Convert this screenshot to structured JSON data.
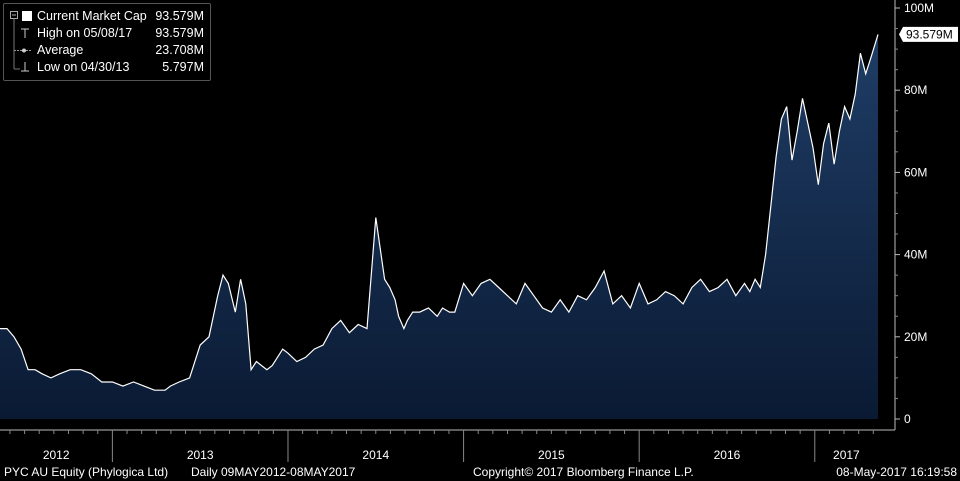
{
  "legend": {
    "current": {
      "label": "Current Market Cap",
      "value": "93.579M"
    },
    "high": {
      "label": "High on 05/08/17",
      "value": "93.579M"
    },
    "average": {
      "label": "Average",
      "value": "23.708M"
    },
    "low": {
      "label": "Low on 04/30/13",
      "value": "5.797M"
    }
  },
  "footer": {
    "security": "PYC AU Equity (Phylogica Ltd)",
    "range": "Daily 09MAY2012-08MAY2017",
    "copyright": "Copyright© 2017 Bloomberg Finance L.P.",
    "timestamp": "08-May-2017 16:19:58"
  },
  "last_value_label": "93.579M",
  "colors": {
    "background": "#000000",
    "line": "#ffffff",
    "area_top": "#1f3d66",
    "area_bottom": "#0a1a33",
    "grid": "#2a2a2a"
  },
  "chart_data": {
    "type": "area",
    "title": "",
    "xlabel": "",
    "ylabel": "",
    "y_axis_side": "right",
    "legend_placement": "top-left",
    "grid": false,
    "ylim": [
      0,
      100
    ],
    "yticks": [
      0,
      20,
      40,
      60,
      80,
      100
    ],
    "ytick_labels": [
      "0",
      "20M",
      "40M",
      "60M",
      "80M",
      "100M"
    ],
    "xlim": [
      2012.36,
      2017.36
    ],
    "x_year_labels": [
      "2012",
      "2013",
      "2014",
      "2015",
      "2016",
      "2017"
    ],
    "series": [
      {
        "name": "Current Market Cap",
        "unit": "M",
        "x": [
          2012.36,
          2012.4,
          2012.44,
          2012.48,
          2012.52,
          2012.56,
          2012.6,
          2012.65,
          2012.7,
          2012.76,
          2012.82,
          2012.88,
          2012.94,
          2013.0,
          2013.06,
          2013.12,
          2013.18,
          2013.24,
          2013.3,
          2013.33,
          2013.38,
          2013.44,
          2013.5,
          2013.55,
          2013.6,
          2013.63,
          2013.66,
          2013.7,
          2013.73,
          2013.76,
          2013.79,
          2013.82,
          2013.85,
          2013.88,
          2013.91,
          2013.94,
          2013.97,
          2014.0,
          2014.05,
          2014.1,
          2014.15,
          2014.2,
          2014.25,
          2014.3,
          2014.35,
          2014.4,
          2014.45,
          2014.5,
          2014.55,
          2014.58,
          2014.61,
          2014.63,
          2014.66,
          2014.68,
          2014.71,
          2014.75,
          2014.8,
          2014.85,
          2014.88,
          2014.92,
          2014.95,
          2015.0,
          2015.05,
          2015.1,
          2015.15,
          2015.2,
          2015.25,
          2015.3,
          2015.35,
          2015.4,
          2015.45,
          2015.5,
          2015.55,
          2015.6,
          2015.65,
          2015.7,
          2015.75,
          2015.8,
          2015.85,
          2015.9,
          2015.95,
          2016.0,
          2016.05,
          2016.1,
          2016.15,
          2016.2,
          2016.25,
          2016.3,
          2016.35,
          2016.4,
          2016.45,
          2016.5,
          2016.55,
          2016.6,
          2016.63,
          2016.66,
          2016.69,
          2016.72,
          2016.75,
          2016.78,
          2016.81,
          2016.84,
          2016.87,
          2016.9,
          2016.93,
          2016.96,
          2016.99,
          2017.02,
          2017.05,
          2017.08,
          2017.11,
          2017.14,
          2017.17,
          2017.2,
          2017.23,
          2017.26,
          2017.29,
          2017.32,
          2017.36
        ],
        "values": [
          22,
          22,
          20,
          17,
          12,
          12,
          11,
          10,
          11,
          12,
          12,
          11,
          9,
          9,
          8,
          9,
          8,
          7,
          7,
          8,
          9,
          10,
          18,
          20,
          30,
          35,
          33,
          26,
          34,
          28,
          12,
          14,
          13,
          12,
          13,
          15,
          17,
          16,
          14,
          15,
          17,
          18,
          22,
          24,
          21,
          23,
          22,
          49,
          34,
          32,
          29,
          25,
          22,
          24,
          26,
          26,
          27,
          25,
          27,
          26,
          26,
          33,
          30,
          33,
          34,
          32,
          30,
          28,
          33,
          30,
          27,
          26,
          29,
          26,
          30,
          29,
          32,
          36,
          28,
          30,
          27,
          33,
          28,
          29,
          31,
          30,
          28,
          32,
          34,
          31,
          32,
          34,
          30,
          33,
          31,
          34,
          32,
          40,
          52,
          64,
          73,
          76,
          63,
          70,
          78,
          72,
          66,
          57,
          67,
          72,
          62,
          70,
          76,
          73,
          79,
          89,
          84,
          88,
          93.579
        ]
      }
    ],
    "annotations": [
      {
        "label": "High on 05/08/17",
        "value": 93.579
      },
      {
        "label": "Average",
        "value": 23.708
      },
      {
        "label": "Low on 04/30/13",
        "value": 5.797
      }
    ]
  }
}
